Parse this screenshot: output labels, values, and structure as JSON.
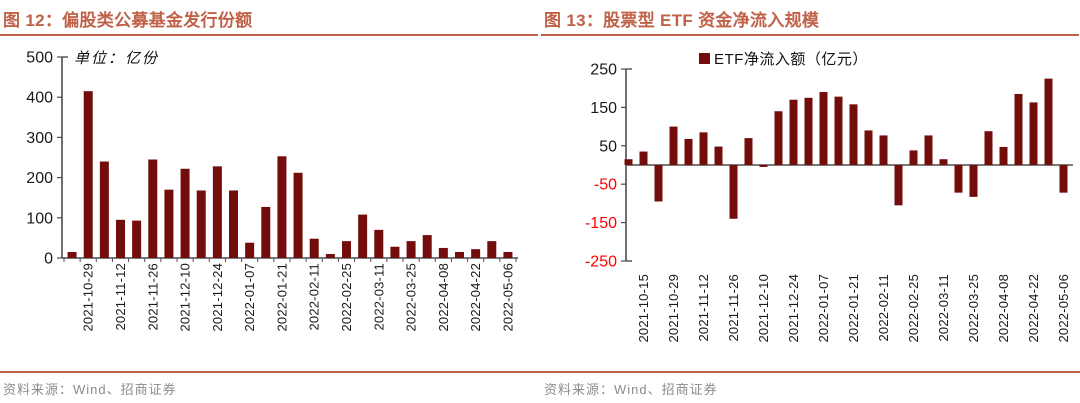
{
  "colors": {
    "accent": "#c0624a",
    "bar": "#730d0c",
    "axis": "#4d4d4d",
    "text": "#1a1a1a",
    "negative_tick": "#ff0000",
    "source_text": "#8c8c8c"
  },
  "panels": [
    {
      "title": "图 12：偏股类公募基金发行份额",
      "source": "资料来源：Wind、招商证券"
    },
    {
      "title": "图 13：股票型 ETF 资金净流入规模",
      "source": "资料来源：Wind、招商证券"
    }
  ],
  "chart_data": [
    {
      "type": "bar",
      "title": "偏股类公募基金发行份额",
      "unit_annotation": "单位：亿份",
      "xlabel": "",
      "ylabel": "亿份",
      "ylim": [
        0,
        500
      ],
      "ytick_interval": 100,
      "grid": false,
      "legend_position": "none",
      "values": [
        15,
        415,
        240,
        95,
        93,
        245,
        170,
        222,
        168,
        228,
        168,
        38,
        127,
        253,
        212,
        48,
        10,
        42,
        108,
        70,
        28,
        42,
        57,
        25,
        15,
        22,
        42,
        15
      ],
      "tick_labels": [
        "2021-10-29",
        "2021-11-12",
        "2021-11-26",
        "2021-12-10",
        "2021-12-24",
        "2022-01-07",
        "2022-01-21",
        "2022-02-11",
        "2022-02-25",
        "2022-03-11",
        "2022-03-25",
        "2022-04-08",
        "2022-04-22",
        "2022-05-06"
      ],
      "tick_start_index": 1,
      "tick_every": 2
    },
    {
      "type": "bar",
      "title": "股票型 ETF 资金净流入规模",
      "legend": "ETF净流入额（亿元）",
      "xlabel": "",
      "ylabel": "亿元",
      "ylim": [
        -250,
        250
      ],
      "ytick_interval": 100,
      "grid": false,
      "legend_position": "top",
      "values": [
        15,
        35,
        -95,
        100,
        68,
        85,
        48,
        -140,
        70,
        -5,
        140,
        170,
        175,
        190,
        178,
        158,
        90,
        77,
        -105,
        38,
        77,
        15,
        -72,
        -83,
        88,
        47,
        185,
        163,
        225,
        -72
      ],
      "tick_labels": [
        "2021-10-15",
        "2021-10-29",
        "2021-11-12",
        "2021-11-26",
        "2021-12-10",
        "2021-12-24",
        "2022-01-07",
        "2022-01-21",
        "2022-02-11",
        "2022-02-25",
        "2022-03-11",
        "2022-03-25",
        "2022-04-08",
        "2022-04-22",
        "2022-05-06"
      ],
      "tick_start_index": 1,
      "tick_every": 2
    }
  ]
}
